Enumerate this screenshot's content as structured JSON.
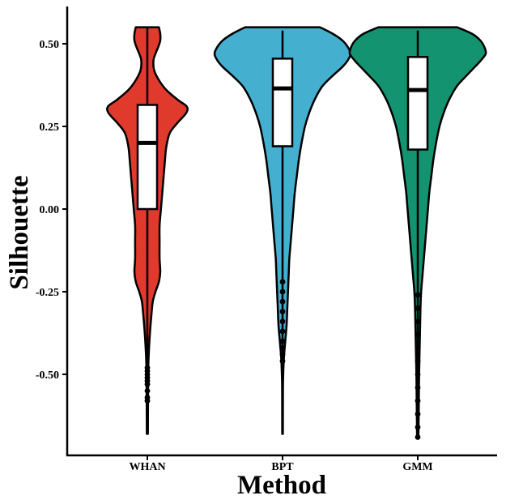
{
  "chart_data": {
    "type": "violin",
    "title": "",
    "xlabel": "Method",
    "ylabel": "Silhouette",
    "ylim": [
      -0.73,
      0.62
    ],
    "yticks": [
      -0.5,
      -0.25,
      0.0,
      0.25,
      0.5
    ],
    "ytick_labels": [
      "-0.50",
      "-0.25",
      "0.00",
      "0.25",
      "0.50"
    ],
    "categories": [
      "WHAN",
      "BPT",
      "GMM"
    ],
    "grid": false,
    "legend": "none",
    "groups": [
      {
        "name": "WHAN",
        "color": "#e03a2c",
        "min": -0.68,
        "max": 0.55,
        "box": {
          "q1": 0.0,
          "median": 0.2,
          "q3": 0.315
        },
        "whisker": [
          -0.47,
          0.55
        ],
        "outliers": [
          -0.48,
          -0.49,
          -0.5,
          -0.51,
          -0.52,
          -0.53,
          -0.55,
          -0.57,
          -0.58
        ],
        "density": [
          [
            0.55,
            0.17
          ],
          [
            0.53,
            0.19
          ],
          [
            0.51,
            0.19
          ],
          [
            0.49,
            0.16
          ],
          [
            0.47,
            0.12
          ],
          [
            0.45,
            0.09
          ],
          [
            0.42,
            0.1
          ],
          [
            0.39,
            0.17
          ],
          [
            0.36,
            0.28
          ],
          [
            0.33,
            0.45
          ],
          [
            0.31,
            0.58
          ],
          [
            0.29,
            0.57
          ],
          [
            0.26,
            0.44
          ],
          [
            0.23,
            0.33
          ],
          [
            0.19,
            0.28
          ],
          [
            0.15,
            0.26
          ],
          [
            0.1,
            0.24
          ],
          [
            0.05,
            0.22
          ],
          [
            0.0,
            0.2
          ],
          [
            -0.05,
            0.18
          ],
          [
            -0.1,
            0.18
          ],
          [
            -0.15,
            0.18
          ],
          [
            -0.19,
            0.19
          ],
          [
            -0.22,
            0.17
          ],
          [
            -0.25,
            0.12
          ],
          [
            -0.28,
            0.08
          ],
          [
            -0.32,
            0.06
          ],
          [
            -0.37,
            0.04
          ],
          [
            -0.42,
            0.025
          ],
          [
            -0.47,
            0.015
          ],
          [
            -0.52,
            0.012
          ],
          [
            -0.58,
            0.01
          ],
          [
            -0.68,
            0.008
          ]
        ]
      },
      {
        "name": "BPT",
        "color": "#45afcf",
        "min": -0.68,
        "max": 0.55,
        "box": {
          "q1": 0.19,
          "median": 0.365,
          "q3": 0.455
        },
        "whisker": [
          -0.21,
          0.54
        ],
        "outliers": [
          -0.22,
          -0.25,
          -0.28,
          -0.31,
          -0.34,
          -0.37,
          -0.4,
          -0.42,
          -0.44,
          -0.46
        ],
        "density": [
          [
            0.55,
            0.55
          ],
          [
            0.53,
            0.74
          ],
          [
            0.51,
            0.88
          ],
          [
            0.49,
            0.96
          ],
          [
            0.47,
            1.0
          ],
          [
            0.45,
            0.96
          ],
          [
            0.43,
            0.88
          ],
          [
            0.4,
            0.72
          ],
          [
            0.37,
            0.58
          ],
          [
            0.33,
            0.47
          ],
          [
            0.29,
            0.39
          ],
          [
            0.25,
            0.33
          ],
          [
            0.2,
            0.28
          ],
          [
            0.15,
            0.24
          ],
          [
            0.1,
            0.21
          ],
          [
            0.05,
            0.18
          ],
          [
            0.0,
            0.16
          ],
          [
            -0.05,
            0.14
          ],
          [
            -0.1,
            0.12
          ],
          [
            -0.15,
            0.1
          ],
          [
            -0.2,
            0.09
          ],
          [
            -0.25,
            0.08
          ],
          [
            -0.3,
            0.07
          ],
          [
            -0.35,
            0.06
          ],
          [
            -0.4,
            0.04
          ],
          [
            -0.45,
            0.02
          ],
          [
            -0.5,
            0.01
          ],
          [
            -0.55,
            0.006
          ],
          [
            -0.68,
            0.005
          ]
        ]
      },
      {
        "name": "GMM",
        "color": "#139370",
        "min": -0.69,
        "max": 0.55,
        "box": {
          "q1": 0.18,
          "median": 0.36,
          "q3": 0.46
        },
        "whisker": [
          -0.24,
          0.54
        ],
        "outliers": [
          -0.26,
          -0.3,
          -0.34,
          -0.38,
          -0.42,
          -0.46,
          -0.5,
          -0.54,
          -0.58,
          -0.62,
          -0.66,
          -0.69
        ],
        "density": [
          [
            0.55,
            0.58
          ],
          [
            0.53,
            0.8
          ],
          [
            0.51,
            0.92
          ],
          [
            0.49,
            0.98
          ],
          [
            0.47,
            1.0
          ],
          [
            0.45,
            0.93
          ],
          [
            0.43,
            0.84
          ],
          [
            0.4,
            0.7
          ],
          [
            0.37,
            0.57
          ],
          [
            0.33,
            0.46
          ],
          [
            0.29,
            0.38
          ],
          [
            0.25,
            0.32
          ],
          [
            0.2,
            0.27
          ],
          [
            0.15,
            0.23
          ],
          [
            0.1,
            0.2
          ],
          [
            0.05,
            0.17
          ],
          [
            0.0,
            0.15
          ],
          [
            -0.05,
            0.13
          ],
          [
            -0.1,
            0.11
          ],
          [
            -0.15,
            0.09
          ],
          [
            -0.2,
            0.07
          ],
          [
            -0.25,
            0.05
          ],
          [
            -0.3,
            0.04
          ],
          [
            -0.4,
            0.03
          ],
          [
            -0.5,
            0.02
          ],
          [
            -0.6,
            0.015
          ],
          [
            -0.69,
            0.01
          ]
        ]
      }
    ]
  }
}
